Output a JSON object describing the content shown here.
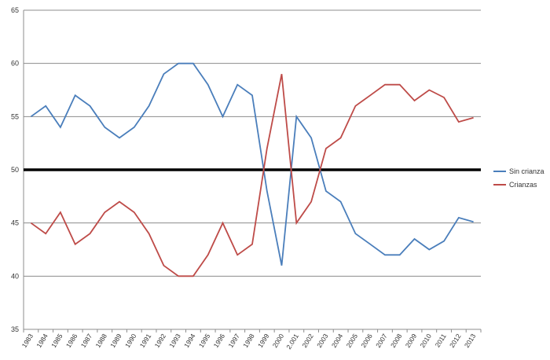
{
  "chart_data": {
    "type": "line",
    "title": "",
    "xlabel": "",
    "ylabel": "",
    "ylim": [
      35,
      65
    ],
    "y_ticks": [
      35,
      40,
      45,
      50,
      55,
      60,
      65
    ],
    "grid": "horizontal",
    "legend_position": "right",
    "categories": [
      "1983",
      "1984",
      "1985",
      "1986",
      "1987",
      "1988",
      "1989",
      "1990",
      "1991",
      "1992",
      "1993",
      "1994",
      "1995",
      "1996",
      "1997",
      "1998",
      "1999",
      "2000",
      "2.001",
      "2002",
      "2003",
      "2004",
      "2005",
      "2006",
      "2007",
      "2008",
      "2009",
      "2010",
      "2011",
      "2012",
      "2013"
    ],
    "series": [
      {
        "name": "Sin crianza",
        "color": "#4a7ebb",
        "values": [
          55,
          56,
          54,
          57,
          56,
          54,
          53,
          54,
          56,
          59,
          60,
          60,
          58,
          55,
          58,
          57,
          48,
          41,
          55,
          53,
          48,
          47,
          44,
          43,
          42,
          42,
          43.5,
          42.5,
          43.3,
          45.5,
          45.1
        ]
      },
      {
        "name": "Crianzas",
        "color": "#be4b48",
        "values": [
          45,
          44,
          46,
          43,
          44,
          46,
          47,
          46,
          44,
          41,
          40,
          40,
          42,
          45,
          42,
          43,
          52,
          59,
          45,
          47,
          52,
          53,
          56,
          57,
          58,
          58,
          56.5,
          57.5,
          56.8,
          54.5,
          54.9
        ]
      }
    ],
    "reference_line": {
      "value": 50,
      "color": "#000000"
    }
  }
}
